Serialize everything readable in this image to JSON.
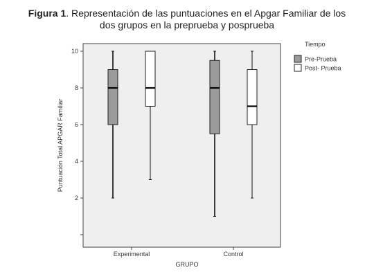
{
  "figure": {
    "caption_lead": "Figura 1",
    "caption_text": ". Representación de las puntuaciones en el Apgar Familiar de los",
    "caption_line2": "dos grupos en la preprueba y posprueba"
  },
  "chart_data": {
    "type": "boxplot",
    "xlabel": "GRUPO",
    "ylabel": "Puntuación Total APGAR Familiar",
    "ylim": [
      0,
      10.3
    ],
    "yticks": [
      2,
      4,
      6,
      8,
      10
    ],
    "categories": [
      "Experimental",
      "Control"
    ],
    "legend_title": "Tiempo",
    "legend_position": "right",
    "grid": false,
    "series": [
      {
        "name": "Pre-Prueba",
        "color": "#9b9b9b",
        "boxes": [
          {
            "min": 2,
            "q1": 6,
            "median": 8,
            "q3": 9,
            "max": 10
          },
          {
            "min": 1,
            "q1": 5.5,
            "median": 8,
            "q3": 9.5,
            "max": 10
          }
        ]
      },
      {
        "name": "Post- Prueba",
        "color": "#ffffff",
        "boxes": [
          {
            "min": 3,
            "q1": 7,
            "median": 8,
            "q3": 10,
            "max": 10
          },
          {
            "min": 2,
            "q1": 6,
            "median": 7,
            "q3": 9,
            "max": 10
          }
        ]
      }
    ]
  }
}
